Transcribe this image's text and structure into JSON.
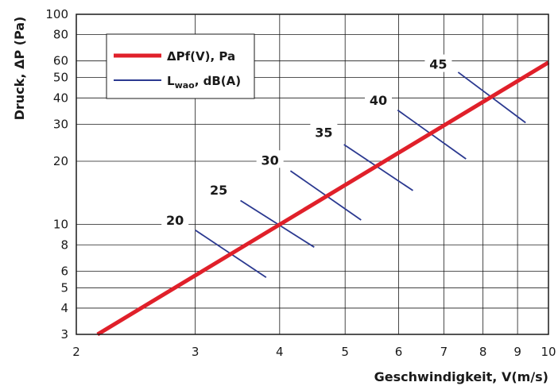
{
  "chart_data": {
    "type": "line",
    "title": "",
    "xlabel": "Geschwindigkeit, V(m/s)",
    "ylabel": "Druck, ΔP (Pa)",
    "x_scale": "log",
    "y_scale": "log",
    "xlim": [
      2,
      10
    ],
    "ylim": [
      3,
      100
    ],
    "x_ticks": [
      2,
      3,
      4,
      5,
      6,
      7,
      8,
      9,
      10
    ],
    "y_ticks": [
      3,
      4,
      5,
      6,
      8,
      10,
      20,
      30,
      40,
      50,
      60,
      80,
      100
    ],
    "grid": true,
    "legend": {
      "placement": "top-left",
      "entries": [
        {
          "label": "ΔPf(V), Pa",
          "color": "#e0202a"
        },
        {
          "label_main": "L",
          "label_sub": "wao",
          "label_rest": ", dB(A)",
          "color": "#2b3990"
        }
      ]
    },
    "series": [
      {
        "name": "ΔPf(V), Pa",
        "color": "#e0202a",
        "points": [
          [
            2.15,
            3.0
          ],
          [
            10.0,
            59.0
          ]
        ]
      }
    ],
    "sound_lines": {
      "color": "#2b3990",
      "items": [
        {
          "label": "20",
          "start": [
            3.0,
            9.4
          ],
          "end": [
            3.82,
            5.6
          ],
          "label_at": [
            2.8,
            10.5
          ]
        },
        {
          "label": "25",
          "start": [
            3.5,
            13.0
          ],
          "end": [
            4.5,
            7.8
          ],
          "label_at": [
            3.25,
            14.6
          ]
        },
        {
          "label": "30",
          "start": [
            4.15,
            18.0
          ],
          "end": [
            5.28,
            10.5
          ],
          "label_at": [
            3.87,
            20.3
          ]
        },
        {
          "label": "35",
          "start": [
            4.98,
            24.0
          ],
          "end": [
            6.3,
            14.5
          ],
          "label_at": [
            4.65,
            27.5
          ]
        },
        {
          "label": "40",
          "start": [
            5.98,
            35.0
          ],
          "end": [
            7.55,
            20.5
          ],
          "label_at": [
            5.6,
            39.0
          ]
        },
        {
          "label": "45",
          "start": [
            7.35,
            53.0
          ],
          "end": [
            9.25,
            30.5
          ],
          "label_at": [
            6.87,
            58.0
          ]
        }
      ]
    }
  }
}
